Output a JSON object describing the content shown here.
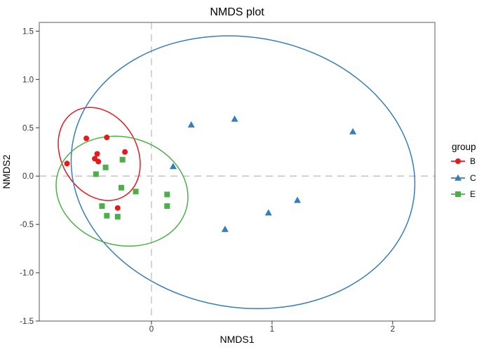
{
  "title": "NMDS plot",
  "legend": {
    "title": "group",
    "entries": [
      {
        "label": "B",
        "shape": "circle",
        "color": "#E41A1C"
      },
      {
        "label": "C",
        "shape": "triangle",
        "color": "#377EB8"
      },
      {
        "label": "E",
        "shape": "square",
        "color": "#4DAF4A"
      }
    ]
  },
  "colors": {
    "red": "#E41A1C",
    "blue": "#377EB8",
    "green": "#4DAF4A",
    "reference_line": "#BEBEBE",
    "panel_border": "#808080",
    "tick_text": "#333333",
    "tick_mark": "#333333",
    "background": "#ffffff"
  },
  "chart_data": {
    "type": "scatter",
    "title": "NMDS plot",
    "xlabel": "NMDS1",
    "ylabel": "NMDS2",
    "xlim": [
      -0.93,
      2.35
    ],
    "ylim": [
      -1.5,
      1.59
    ],
    "x_ticks": [
      0,
      1,
      2
    ],
    "x_tick_labels": [
      "0",
      "1",
      "2"
    ],
    "y_ticks": [
      1.5,
      1.0,
      0.5,
      0.0,
      -0.5,
      -1.0,
      -1.5
    ],
    "y_tick_labels": [
      "1.5",
      "1.0",
      "0.5",
      "0.0",
      "-0.5",
      "-1.0",
      "-1.5"
    ],
    "grid": false,
    "legend_position": "right",
    "reference_lines": {
      "vertical_x": 0,
      "horizontal_y": 0,
      "style": "dashed"
    },
    "series": [
      {
        "name": "B",
        "shape": "circle",
        "color": "#E41A1C",
        "points": [
          [
            -0.7,
            0.13
          ],
          [
            -0.54,
            0.39
          ],
          [
            -0.37,
            0.4
          ],
          [
            -0.45,
            0.23
          ],
          [
            -0.47,
            0.18
          ],
          [
            -0.44,
            0.15
          ],
          [
            -0.22,
            0.25
          ],
          [
            -0.28,
            -0.33
          ]
        ],
        "ellipse": {
          "cx": -0.433,
          "cy": 0.229,
          "rx": 0.314,
          "ry": 0.508,
          "rotate_deg": -30
        }
      },
      {
        "name": "C",
        "shape": "triangle",
        "color": "#377EB8",
        "points": [
          [
            0.33,
            0.53
          ],
          [
            0.69,
            0.59
          ],
          [
            0.18,
            0.1
          ],
          [
            0.61,
            -0.55
          ],
          [
            0.97,
            -0.38
          ],
          [
            1.21,
            -0.25
          ],
          [
            1.67,
            0.46
          ]
        ],
        "ellipse": {
          "cx": 0.759,
          "cy": 0.04,
          "rx": 1.433,
          "ry": 1.398,
          "rotate_deg": 10
        }
      },
      {
        "name": "E",
        "shape": "square",
        "color": "#4DAF4A",
        "points": [
          [
            -0.24,
            0.17
          ],
          [
            -0.38,
            0.09
          ],
          [
            -0.46,
            0.02
          ],
          [
            -0.25,
            -0.12
          ],
          [
            -0.13,
            -0.16
          ],
          [
            0.13,
            -0.19
          ],
          [
            -0.41,
            -0.31
          ],
          [
            0.13,
            -0.31
          ],
          [
            -0.37,
            -0.41
          ],
          [
            -0.28,
            -0.42
          ]
        ],
        "ellipse": {
          "cx": -0.244,
          "cy": -0.156,
          "rx": 0.553,
          "ry": 0.559,
          "rotate_deg": 15
        }
      }
    ]
  }
}
